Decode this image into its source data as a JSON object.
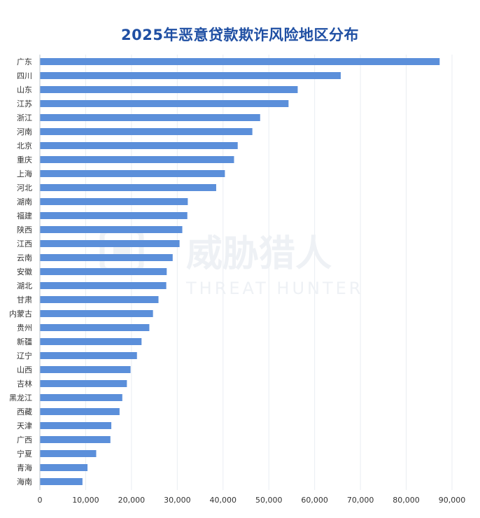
{
  "chart_data": {
    "type": "bar",
    "orientation": "horizontal",
    "title": "2025年恶意贷款欺诈风险地区分布",
    "categories": [
      "广东",
      "四川",
      "山东",
      "江苏",
      "浙江",
      "河南",
      "北京",
      "重庆",
      "上海",
      "河北",
      "湖南",
      "福建",
      "陕西",
      "江西",
      "云南",
      "安徽",
      "湖北",
      "甘肃",
      "内蒙古",
      "贵州",
      "新疆",
      "辽宁",
      "山西",
      "吉林",
      "黑龙江",
      "西藏",
      "天津",
      "广西",
      "宁夏",
      "青海",
      "海南"
    ],
    "values": [
      87300,
      65700,
      56300,
      54300,
      48100,
      46400,
      43200,
      42400,
      40400,
      38500,
      32300,
      32200,
      31100,
      30500,
      29000,
      27700,
      27600,
      25900,
      24700,
      23900,
      22200,
      21200,
      19800,
      19000,
      18000,
      17400,
      15600,
      15400,
      12300,
      10400,
      9300
    ],
    "xlim": [
      0,
      90000
    ],
    "x_ticks": [
      "0",
      "10,000",
      "20,000",
      "30,000",
      "40,000",
      "50,000",
      "60,000",
      "70,000",
      "80,000",
      "90,000"
    ],
    "grid": "vertical",
    "bar_color": "#5b8fda",
    "title_color": "#1f4fa3"
  },
  "watermark": {
    "main": "威胁猎人",
    "sub": "THREAT HUNTER"
  }
}
